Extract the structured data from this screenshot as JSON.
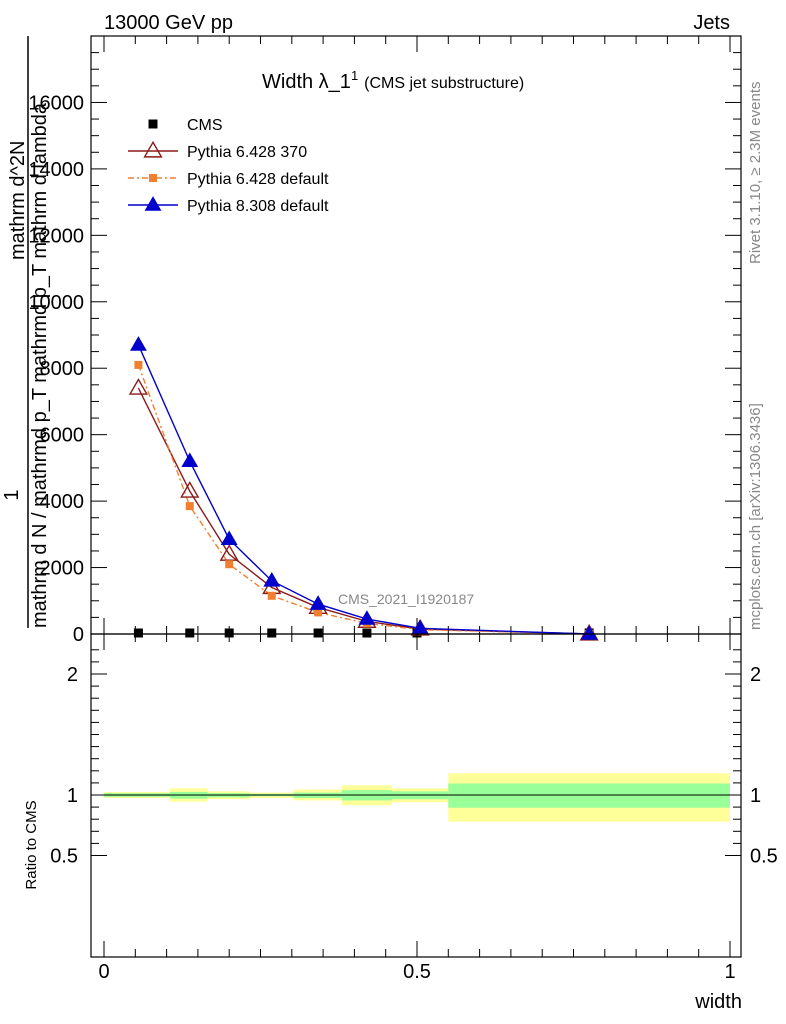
{
  "header": {
    "left": "13000 GeV pp",
    "right": "Jets"
  },
  "side": {
    "rivet": "Rivet 3.1.10, ≥ 2.3M events",
    "mcplots": "mcplots.cern.ch [arXiv:1306.3436]"
  },
  "chart_data": [
    {
      "type": "line",
      "title_main": "Width λ_1",
      "title_sup": "1",
      "title_note": "(CMS jet substructure)",
      "analysis_label": "CMS_2021_I1920187",
      "ylabel_numerator": "1",
      "ylabel_denominator": "mathrm d N / mathrmd p_T mathrmd p_T mathrm d lambda",
      "ylabel_top": "mathrm d^2N",
      "ylim": [
        0,
        18000
      ],
      "xlim": [
        0,
        1
      ],
      "yticks": [
        0,
        2000,
        4000,
        6000,
        8000,
        10000,
        12000,
        14000,
        16000
      ],
      "ytick_labels": [
        "0",
        "2000",
        "4000",
        "6000",
        "8000",
        "10000",
        "12000",
        "14000",
        "16000"
      ],
      "legend_placement": "top-left",
      "series": [
        {
          "name": "CMS",
          "color": "#000000",
          "marker": "square",
          "x": [
            0.055,
            0.137,
            0.2,
            0.268,
            0.342,
            0.42,
            0.5,
            0.775
          ],
          "y": [
            0,
            0,
            0,
            0,
            0,
            0,
            0,
            0
          ]
        },
        {
          "name": "Pythia 6.428 370",
          "color": "#8b1a1a",
          "marker": "open-triangle",
          "x": [
            0.055,
            0.137,
            0.2,
            0.268,
            0.342,
            0.42,
            0.505,
            0.775
          ],
          "y": [
            7400,
            4300,
            2400,
            1400,
            800,
            380,
            150,
            0
          ]
        },
        {
          "name": "Pythia 6.428 default",
          "color": "#f08030",
          "marker": "square",
          "x": [
            0.055,
            0.137,
            0.2,
            0.268,
            0.342,
            0.42,
            0.505,
            0.775
          ],
          "y": [
            8100,
            3850,
            2100,
            1150,
            650,
            320,
            130,
            0
          ]
        },
        {
          "name": "Pythia 8.308 default",
          "color": "#0000cc",
          "marker": "triangle",
          "x": [
            0.055,
            0.137,
            0.2,
            0.268,
            0.342,
            0.42,
            0.505,
            0.775
          ],
          "y": [
            8700,
            5200,
            2850,
            1600,
            900,
            450,
            170,
            0
          ]
        }
      ]
    },
    {
      "type": "area",
      "ylabel": "Ratio to CMS",
      "xlabel": "width",
      "xlim": [
        0,
        1
      ],
      "ylim": [
        0.3,
        2.3
      ],
      "xticks": [
        0,
        0.5,
        1
      ],
      "xtick_labels": [
        "0",
        "0.5",
        "1"
      ],
      "yticks": [
        0.5,
        1,
        2
      ],
      "ytick_labels": [
        "0.5",
        "1",
        "2"
      ],
      "bins": [
        {
          "x0": 0.0,
          "x1": 0.105,
          "inner": [
            0.985,
            1.015
          ],
          "outer": [
            0.975,
            1.025
          ]
        },
        {
          "x0": 0.105,
          "x1": 0.165,
          "inner": [
            0.97,
            1.025
          ],
          "outer": [
            0.945,
            1.055
          ]
        },
        {
          "x0": 0.165,
          "x1": 0.233,
          "inner": [
            0.98,
            1.015
          ],
          "outer": [
            0.965,
            1.03
          ]
        },
        {
          "x0": 0.233,
          "x1": 0.303,
          "inner": [
            0.99,
            1.01
          ],
          "outer": [
            0.975,
            1.02
          ]
        },
        {
          "x0": 0.303,
          "x1": 0.38,
          "inner": [
            0.975,
            1.02
          ],
          "outer": [
            0.955,
            1.045
          ]
        },
        {
          "x0": 0.38,
          "x1": 0.46,
          "inner": [
            0.955,
            1.04
          ],
          "outer": [
            0.915,
            1.08
          ]
        },
        {
          "x0": 0.46,
          "x1": 0.55,
          "inner": [
            0.965,
            1.03
          ],
          "outer": [
            0.94,
            1.055
          ]
        },
        {
          "x0": 0.55,
          "x1": 1.0,
          "inner": [
            0.895,
            1.095
          ],
          "outer": [
            0.78,
            1.18
          ]
        }
      ],
      "colors": {
        "inner": "#99ff99",
        "outer": "#ffff99"
      }
    }
  ]
}
